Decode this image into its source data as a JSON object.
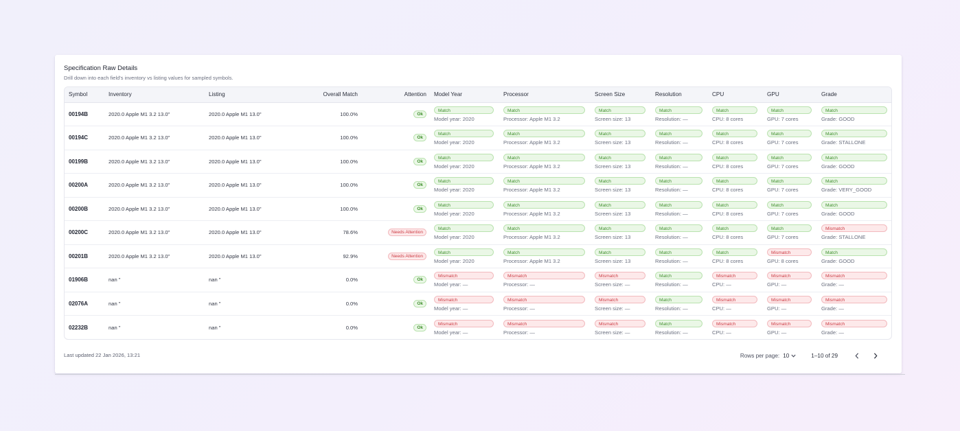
{
  "header": {
    "title": "Specification Raw Details",
    "subtitle": "Drill down into each field's inventory vs listing values for sampled symbols."
  },
  "columns": [
    "Symbol",
    "Inventory",
    "Listing",
    "Overall Match",
    "Attention",
    "Model Year",
    "Processor",
    "Screen Size",
    "Resolution",
    "CPU",
    "GPU",
    "Grade"
  ],
  "rows": [
    {
      "symbol": "00194B",
      "inventory": "2020.0 Apple M1 3.2 13.0\"",
      "listing": "2020.0 Apple M1 13.0\"",
      "overall": "100.0%",
      "attention": "Ok",
      "fields": [
        {
          "status": "Match",
          "value": "Model year: 2020"
        },
        {
          "status": "Match",
          "value": "Processor: Apple M1 3.2"
        },
        {
          "status": "Match",
          "value": "Screen size: 13"
        },
        {
          "status": "Match",
          "value": "Resolution: —"
        },
        {
          "status": "Match",
          "value": "CPU: 8 cores"
        },
        {
          "status": "Match",
          "value": "GPU: 7 cores"
        },
        {
          "status": "Match",
          "value": "Grade: GOOD"
        }
      ]
    },
    {
      "symbol": "00194C",
      "inventory": "2020.0 Apple M1 3.2 13.0\"",
      "listing": "2020.0 Apple M1 13.0\"",
      "overall": "100.0%",
      "attention": "Ok",
      "fields": [
        {
          "status": "Match",
          "value": "Model year: 2020"
        },
        {
          "status": "Match",
          "value": "Processor: Apple M1 3.2"
        },
        {
          "status": "Match",
          "value": "Screen size: 13"
        },
        {
          "status": "Match",
          "value": "Resolution: —"
        },
        {
          "status": "Match",
          "value": "CPU: 8 cores"
        },
        {
          "status": "Match",
          "value": "GPU: 7 cores"
        },
        {
          "status": "Match",
          "value": "Grade: STALLONE"
        }
      ]
    },
    {
      "symbol": "00199B",
      "inventory": "2020.0 Apple M1 3.2 13.0\"",
      "listing": "2020.0 Apple M1 13.0\"",
      "overall": "100.0%",
      "attention": "Ok",
      "fields": [
        {
          "status": "Match",
          "value": "Model year: 2020"
        },
        {
          "status": "Match",
          "value": "Processor: Apple M1 3.2"
        },
        {
          "status": "Match",
          "value": "Screen size: 13"
        },
        {
          "status": "Match",
          "value": "Resolution: —"
        },
        {
          "status": "Match",
          "value": "CPU: 8 cores"
        },
        {
          "status": "Match",
          "value": "GPU: 7 cores"
        },
        {
          "status": "Match",
          "value": "Grade: GOOD"
        }
      ]
    },
    {
      "symbol": "00200A",
      "inventory": "2020.0 Apple M1 3.2 13.0\"",
      "listing": "2020.0 Apple M1 13.0\"",
      "overall": "100.0%",
      "attention": "Ok",
      "fields": [
        {
          "status": "Match",
          "value": "Model year: 2020"
        },
        {
          "status": "Match",
          "value": "Processor: Apple M1 3.2"
        },
        {
          "status": "Match",
          "value": "Screen size: 13"
        },
        {
          "status": "Match",
          "value": "Resolution: —"
        },
        {
          "status": "Match",
          "value": "CPU: 8 cores"
        },
        {
          "status": "Match",
          "value": "GPU: 7 cores"
        },
        {
          "status": "Match",
          "value": "Grade: VERY_GOOD"
        }
      ]
    },
    {
      "symbol": "00200B",
      "inventory": "2020.0 Apple M1 3.2 13.0\"",
      "listing": "2020.0 Apple M1 13.0\"",
      "overall": "100.0%",
      "attention": "Ok",
      "fields": [
        {
          "status": "Match",
          "value": "Model year: 2020"
        },
        {
          "status": "Match",
          "value": "Processor: Apple M1 3.2"
        },
        {
          "status": "Match",
          "value": "Screen size: 13"
        },
        {
          "status": "Match",
          "value": "Resolution: —"
        },
        {
          "status": "Match",
          "value": "CPU: 8 cores"
        },
        {
          "status": "Match",
          "value": "GPU: 7 cores"
        },
        {
          "status": "Match",
          "value": "Grade: GOOD"
        }
      ]
    },
    {
      "symbol": "00200C",
      "inventory": "2020.0 Apple M1 3.2 13.0\"",
      "listing": "2020.0 Apple M1 13.0\"",
      "overall": "78.6%",
      "attention": "Needs Attention",
      "fields": [
        {
          "status": "Match",
          "value": "Model year: 2020"
        },
        {
          "status": "Match",
          "value": "Processor: Apple M1 3.2"
        },
        {
          "status": "Match",
          "value": "Screen size: 13"
        },
        {
          "status": "Match",
          "value": "Resolution: —"
        },
        {
          "status": "Match",
          "value": "CPU: 8 cores"
        },
        {
          "status": "Match",
          "value": "GPU: 7 cores"
        },
        {
          "status": "Mismatch",
          "value": "Grade: STALLONE"
        }
      ]
    },
    {
      "symbol": "00201B",
      "inventory": "2020.0 Apple M1 3.2 13.0\"",
      "listing": "2020.0 Apple M1 13.0\"",
      "overall": "92.9%",
      "attention": "Needs Attention",
      "fields": [
        {
          "status": "Match",
          "value": "Model year: 2020"
        },
        {
          "status": "Match",
          "value": "Processor: Apple M1 3.2"
        },
        {
          "status": "Match",
          "value": "Screen size: 13"
        },
        {
          "status": "Match",
          "value": "Resolution: —"
        },
        {
          "status": "Match",
          "value": "CPU: 8 cores"
        },
        {
          "status": "Mismatch",
          "value": "GPU: 8 cores"
        },
        {
          "status": "Match",
          "value": "Grade: GOOD"
        }
      ]
    },
    {
      "symbol": "01906B",
      "inventory": "nan \"",
      "listing": "nan \"",
      "overall": "0.0%",
      "attention": "Ok",
      "fields": [
        {
          "status": "Mismatch",
          "value": "Model year: —"
        },
        {
          "status": "Mismatch",
          "value": "Processor: —"
        },
        {
          "status": "Mismatch",
          "value": "Screen size: —"
        },
        {
          "status": "Match",
          "value": "Resolution: —"
        },
        {
          "status": "Mismatch",
          "value": "CPU: —"
        },
        {
          "status": "Mismatch",
          "value": "GPU: —"
        },
        {
          "status": "Mismatch",
          "value": "Grade: —"
        }
      ]
    },
    {
      "symbol": "02076A",
      "inventory": "nan \"",
      "listing": "nan \"",
      "overall": "0.0%",
      "attention": "Ok",
      "fields": [
        {
          "status": "Mismatch",
          "value": "Model year: —"
        },
        {
          "status": "Mismatch",
          "value": "Processor: —"
        },
        {
          "status": "Mismatch",
          "value": "Screen size: —"
        },
        {
          "status": "Match",
          "value": "Resolution: —"
        },
        {
          "status": "Mismatch",
          "value": "CPU: —"
        },
        {
          "status": "Mismatch",
          "value": "GPU: —"
        },
        {
          "status": "Mismatch",
          "value": "Grade: —"
        }
      ]
    },
    {
      "symbol": "02232B",
      "inventory": "nan \"",
      "listing": "nan \"",
      "overall": "0.0%",
      "attention": "Ok",
      "fields": [
        {
          "status": "Mismatch",
          "value": "Model year: —"
        },
        {
          "status": "Mismatch",
          "value": "Processor: —"
        },
        {
          "status": "Mismatch",
          "value": "Screen size: —"
        },
        {
          "status": "Match",
          "value": "Resolution: —"
        },
        {
          "status": "Mismatch",
          "value": "CPU: —"
        },
        {
          "status": "Mismatch",
          "value": "GPU: —"
        },
        {
          "status": "Mismatch",
          "value": "Grade: —"
        }
      ]
    }
  ],
  "footer": {
    "last_updated": "Last updated 22 Jan 2026, 13:21",
    "rows_per_page_label": "Rows per page:",
    "rows_per_page_value": "10",
    "range_label": "1–10 of 29"
  },
  "icons": {
    "rows_select": "chevron-down-icon",
    "prev": "chevron-left-icon",
    "next": "chevron-right-icon"
  },
  "colors": {
    "match_text": "#3f8f2c",
    "match_bg": "#eaf7e6",
    "mismatch_text": "#cc3a42",
    "mismatch_bg": "#fde9ea"
  }
}
